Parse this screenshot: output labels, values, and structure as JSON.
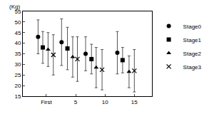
{
  "chart_data": {
    "type": "scatter",
    "y_label": "(Kg)",
    "xlim": [
      -4,
      18
    ],
    "xticks": [
      {
        "value": 0,
        "label": "First"
      },
      5,
      10,
      15
    ],
    "ylim": [
      15,
      55
    ],
    "yticks": [
      15,
      20,
      25,
      30,
      35,
      40,
      45,
      50,
      55
    ],
    "grid": false,
    "legend": "right",
    "series": [
      {
        "name": "Stage0",
        "marker": "circle",
        "color": "#000000",
        "x": [
          -1.4,
          2.6,
          6.7,
          12.1
        ],
        "values": [
          43,
          40.5,
          35,
          35.5
        ],
        "error": [
          8,
          11,
          8,
          10
        ]
      },
      {
        "name": "Stage1",
        "marker": "square",
        "color": "#000000",
        "x": [
          -0.6,
          3.6,
          7.7,
          13.0
        ],
        "values": [
          38,
          37.5,
          32.5,
          32
        ],
        "error": [
          7.5,
          10,
          7,
          6
        ]
      },
      {
        "name": "Stage2",
        "marker": "triangle-up",
        "color": "#000000",
        "x": [
          0.3,
          4.5,
          8.5,
          14.1
        ],
        "values": [
          37,
          33.5,
          28.5,
          26.5
        ],
        "error": [
          8,
          9.5,
          9.5,
          7.5
        ]
      },
      {
        "name": "Stage3",
        "marker": "x-thin",
        "color": "#000000",
        "x": [
          1.2,
          5.3,
          9.5,
          15.0
        ],
        "values": [
          34.5,
          32.5,
          27.5,
          27
        ],
        "error": [
          9.5,
          10.5,
          9.5,
          10
        ]
      }
    ]
  }
}
